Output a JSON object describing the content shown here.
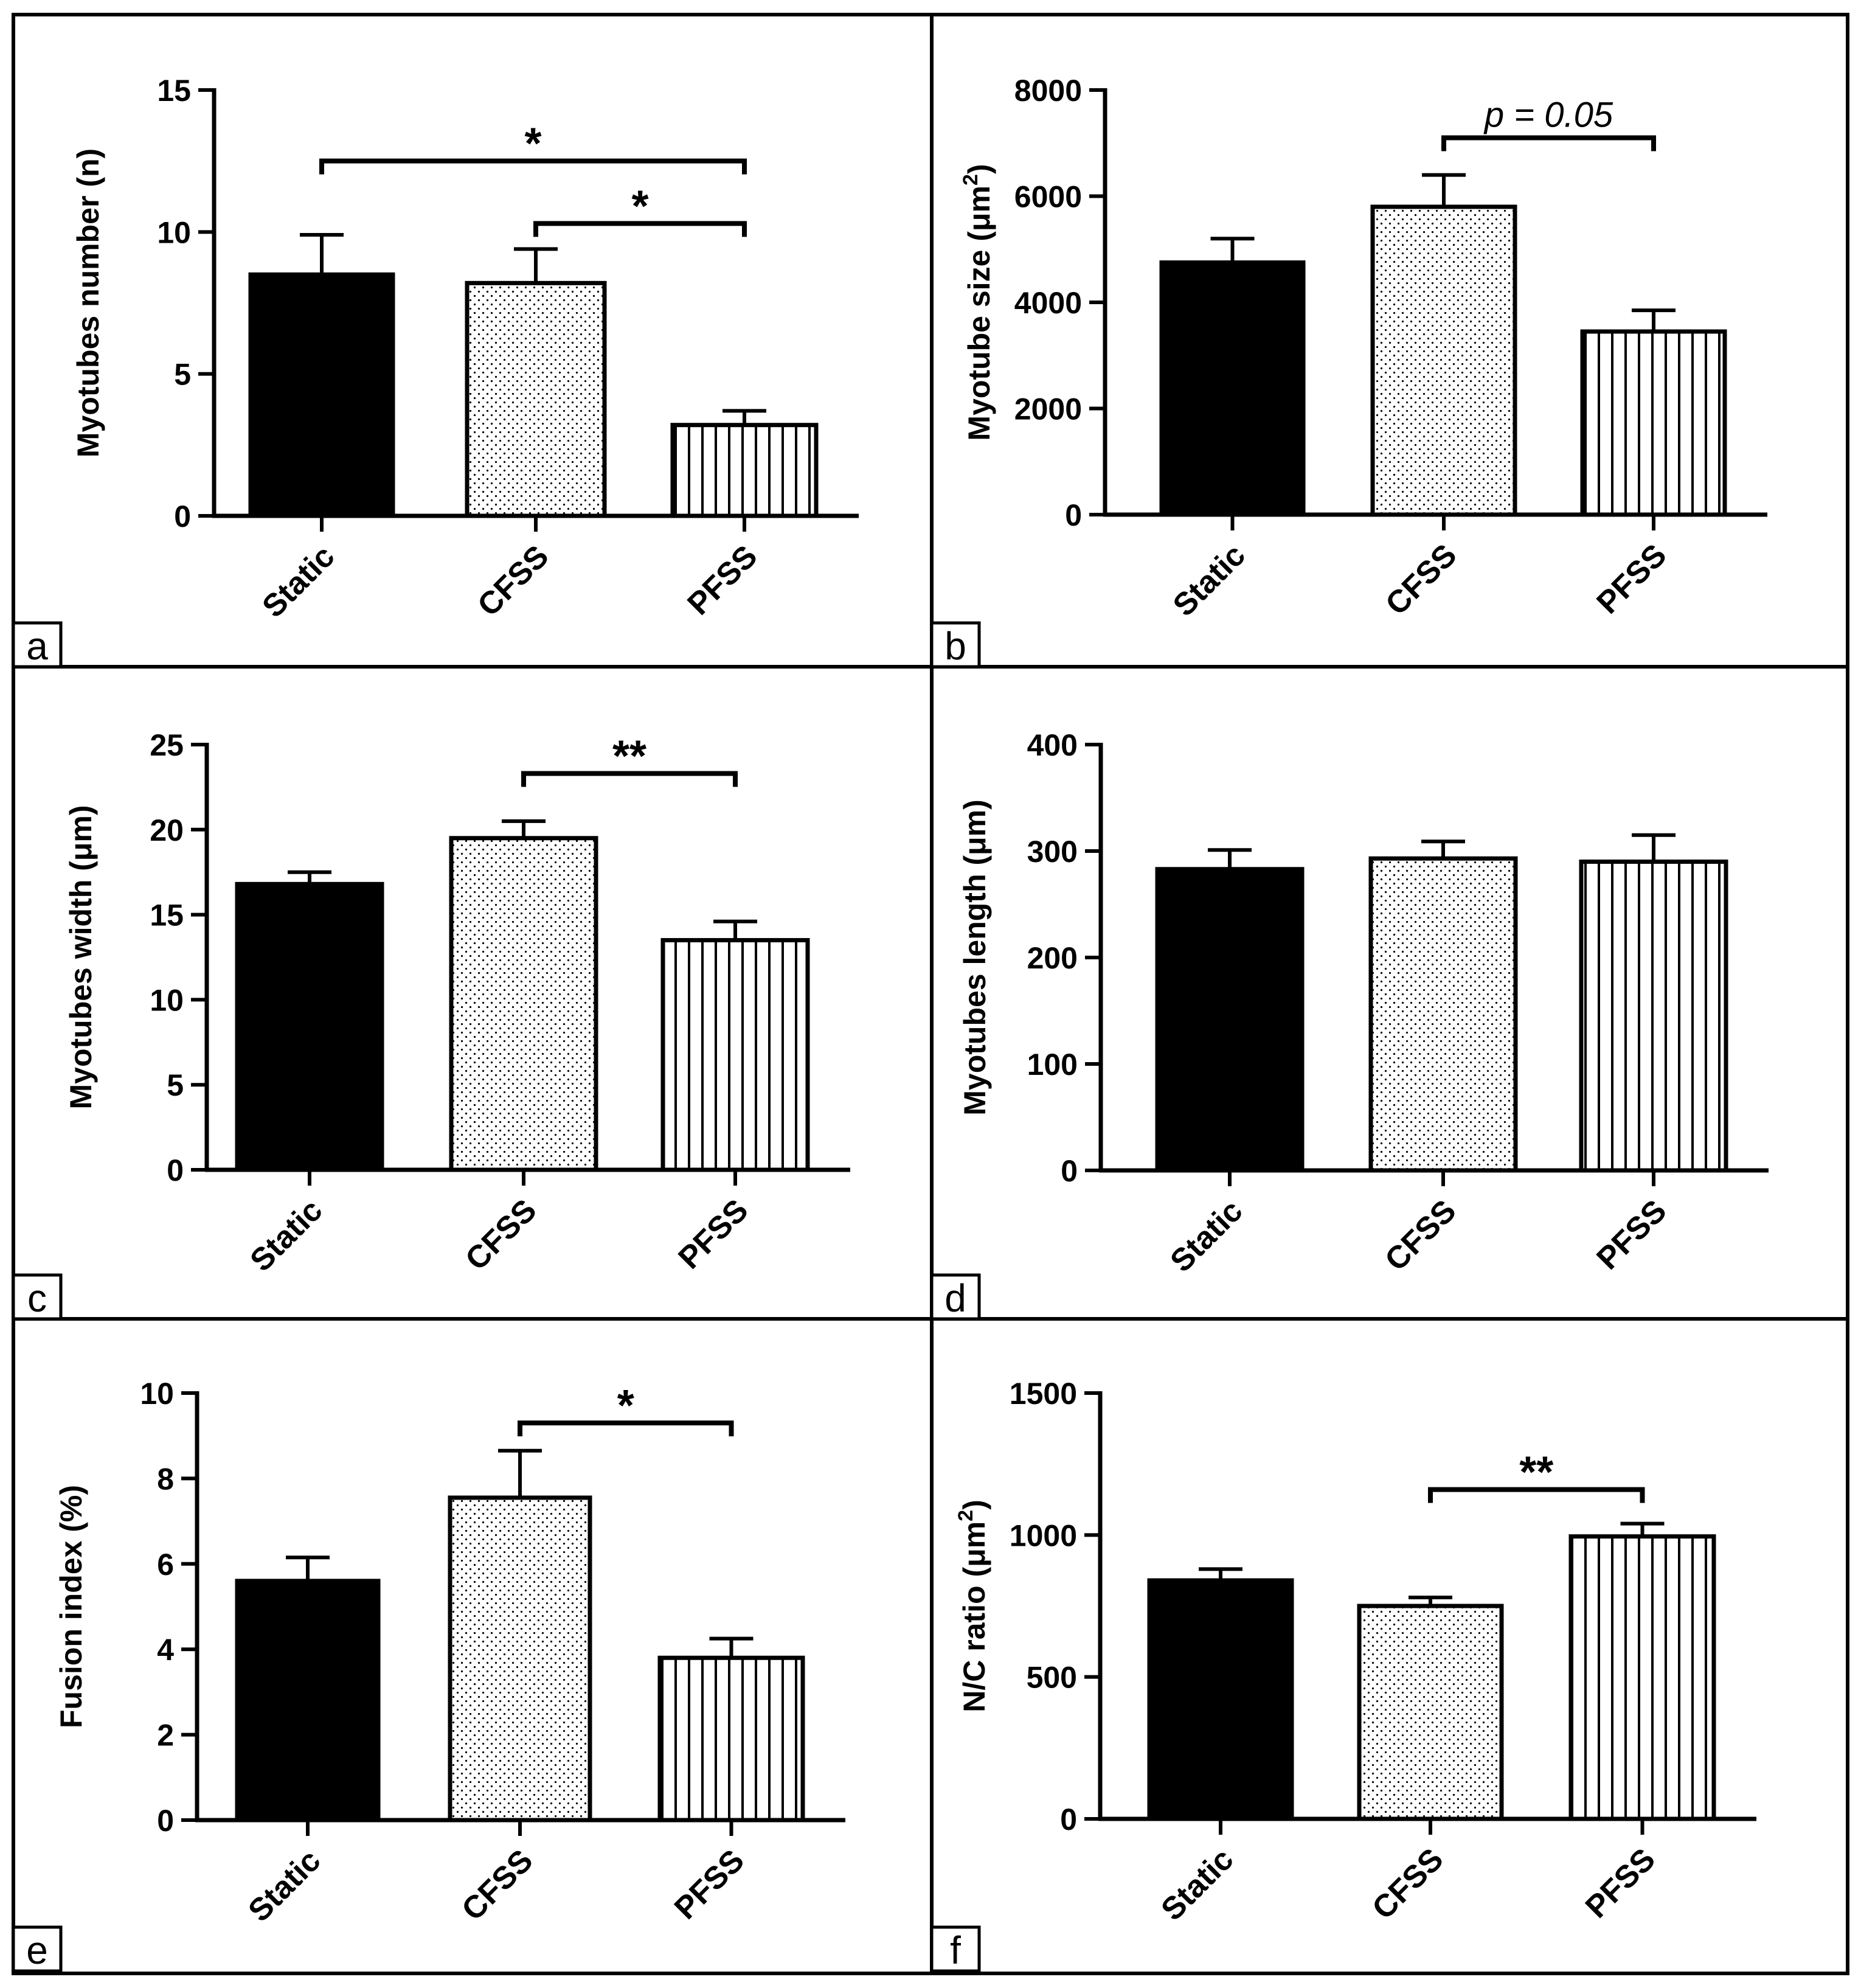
{
  "figure": {
    "panel_letters": [
      "a",
      "b",
      "c",
      "d",
      "e",
      "f"
    ]
  },
  "colors": {
    "static_fill": "#000000",
    "outline": "#000000",
    "background": "#ffffff"
  },
  "chart_data": [
    {
      "panel": "a",
      "type": "bar",
      "ylabel": "Myotubes number (n)",
      "ylabel_superscript": "",
      "categories": [
        "Static",
        "CFSS",
        "PFSS"
      ],
      "patterns": [
        "solid",
        "dots",
        "vlines"
      ],
      "values": [
        8.5,
        8.2,
        3.2
      ],
      "errors": [
        1.4,
        1.2,
        0.5
      ],
      "ylim": [
        0,
        15
      ],
      "yticks": [
        0,
        5,
        10,
        15
      ],
      "ytick_labels": [
        "0",
        "5",
        "10",
        "15"
      ],
      "annotations": [
        {
          "from": 0,
          "to": 2,
          "y": 12.5,
          "label": "*",
          "italic": false
        },
        {
          "from": 1,
          "to": 2,
          "y": 10.3,
          "label": "*",
          "italic": false
        }
      ]
    },
    {
      "panel": "b",
      "type": "bar",
      "ylabel": "Myotube size (μm",
      "ylabel_superscript": "2",
      "categories": [
        "Static",
        "CFSS",
        "PFSS"
      ],
      "patterns": [
        "solid",
        "dots",
        "vlines"
      ],
      "values": [
        4750,
        5800,
        3450
      ],
      "errors": [
        450,
        600,
        400
      ],
      "ylim": [
        0,
        8000
      ],
      "yticks": [
        0,
        2000,
        4000,
        6000,
        8000
      ],
      "ytick_labels": [
        "0",
        "2000",
        "4000",
        "6000",
        "8000"
      ],
      "annotations": [
        {
          "from": 1,
          "to": 2,
          "y": 7100,
          "label": "p = 0.05",
          "italic": true
        }
      ]
    },
    {
      "panel": "c",
      "type": "bar",
      "ylabel": "Myotubes width (μm)",
      "ylabel_superscript": "",
      "categories": [
        "Static",
        "CFSS",
        "PFSS"
      ],
      "patterns": [
        "solid",
        "dots",
        "vlines"
      ],
      "values": [
        16.8,
        19.5,
        13.5
      ],
      "errors": [
        0.7,
        1.0,
        1.1
      ],
      "ylim": [
        0,
        25
      ],
      "yticks": [
        0,
        5,
        10,
        15,
        20,
        25
      ],
      "ytick_labels": [
        "0",
        "5",
        "10",
        "15",
        "20",
        "25"
      ],
      "annotations": [
        {
          "from": 1,
          "to": 2,
          "y": 23.3,
          "label": "**",
          "italic": false
        }
      ]
    },
    {
      "panel": "d",
      "type": "bar",
      "ylabel": "Myotubes length (μm)",
      "ylabel_superscript": "",
      "categories": [
        "Static",
        "CFSS",
        "PFSS"
      ],
      "patterns": [
        "solid",
        "dots",
        "vlines"
      ],
      "values": [
        283,
        293,
        290
      ],
      "errors": [
        18,
        16,
        25
      ],
      "ylim": [
        0,
        400
      ],
      "yticks": [
        0,
        100,
        200,
        300,
        400
      ],
      "ytick_labels": [
        "0",
        "100",
        "200",
        "300",
        "400"
      ],
      "annotations": []
    },
    {
      "panel": "e",
      "type": "bar",
      "ylabel": "Fusion index (%)",
      "ylabel_superscript": "",
      "categories": [
        "Static",
        "CFSS",
        "PFSS"
      ],
      "patterns": [
        "solid",
        "dots",
        "vlines"
      ],
      "values": [
        5.6,
        7.55,
        3.8
      ],
      "errors": [
        0.55,
        1.1,
        0.45
      ],
      "ylim": [
        0,
        10
      ],
      "yticks": [
        0,
        2,
        4,
        6,
        8,
        10
      ],
      "ytick_labels": [
        "0",
        "2",
        "4",
        "6",
        "8",
        "10"
      ],
      "annotations": [
        {
          "from": 1,
          "to": 2,
          "y": 9.3,
          "label": "*",
          "italic": false
        }
      ]
    },
    {
      "panel": "f",
      "type": "bar",
      "ylabel": "N/C ratio (μm",
      "ylabel_superscript": "2",
      "categories": [
        "Static",
        "CFSS",
        "PFSS"
      ],
      "patterns": [
        "solid",
        "dots",
        "vlines"
      ],
      "values": [
        840,
        750,
        995
      ],
      "errors": [
        40,
        30,
        45
      ],
      "ylim": [
        0,
        1500
      ],
      "yticks": [
        0,
        500,
        1000,
        1500
      ],
      "ytick_labels": [
        "0",
        "500",
        "1000",
        "1500"
      ],
      "annotations": [
        {
          "from": 1,
          "to": 2,
          "y": 1160,
          "label": "**",
          "italic": false
        }
      ]
    }
  ]
}
